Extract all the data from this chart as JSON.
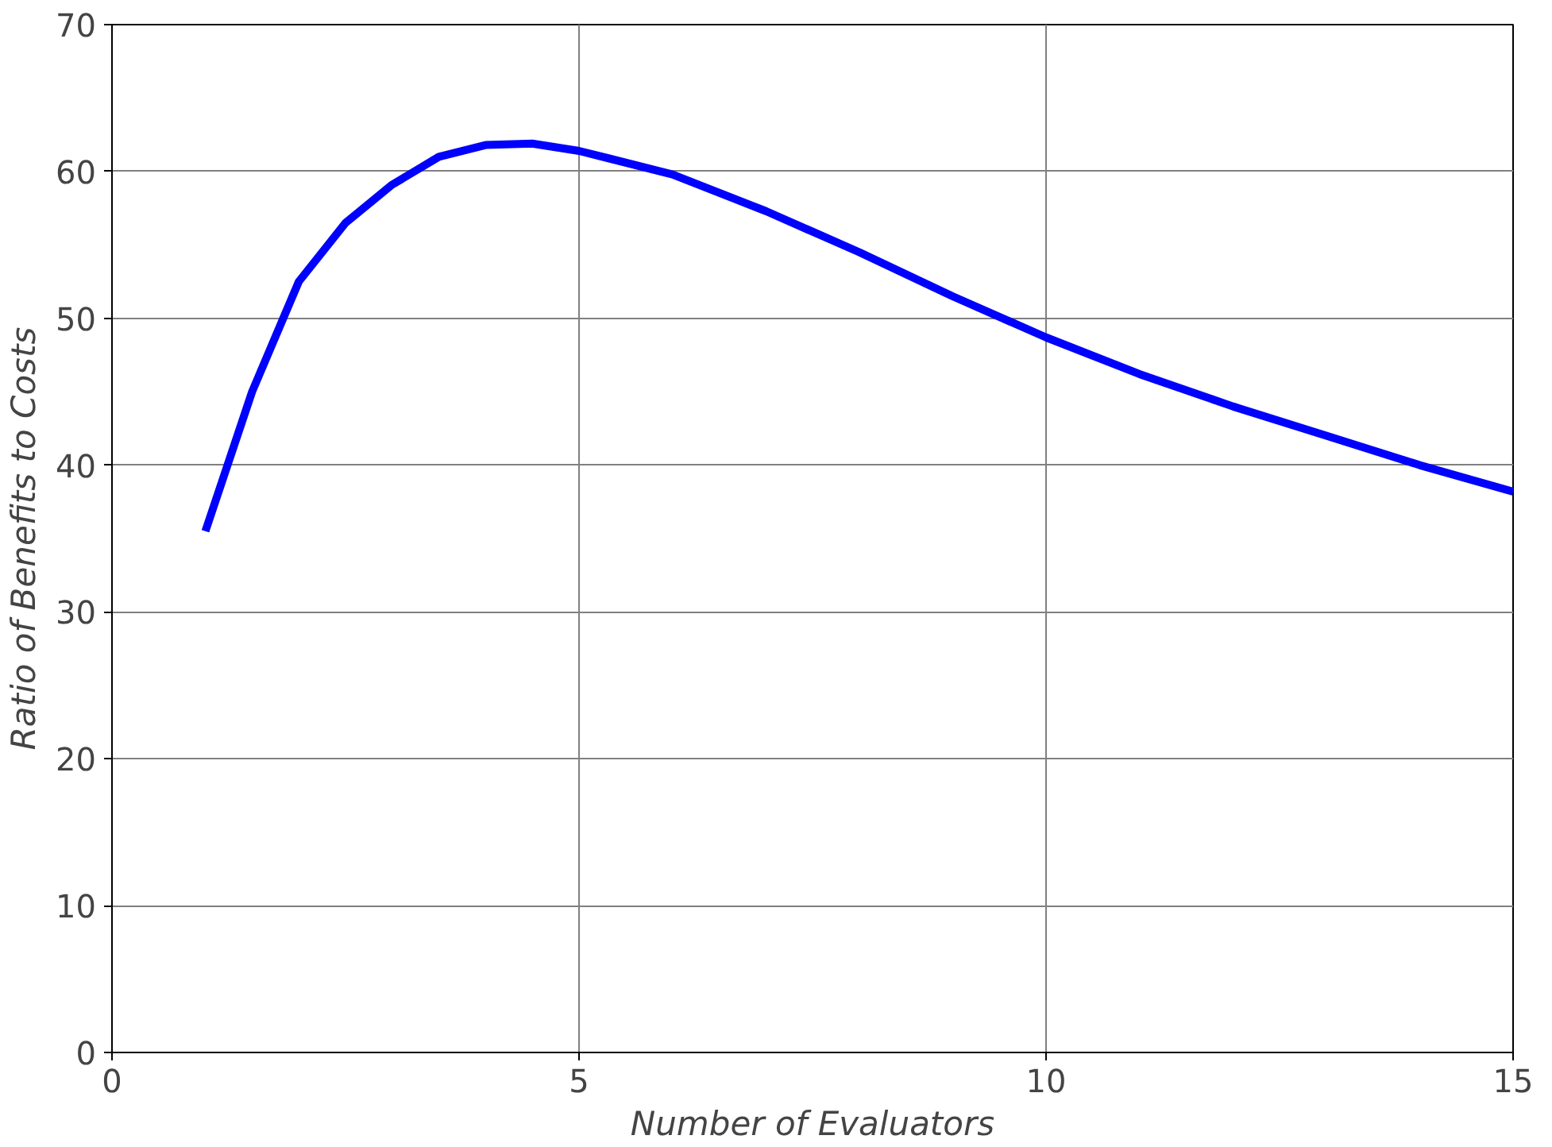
{
  "chart_data": {
    "type": "line",
    "xlabel": "Number of Evaluators",
    "ylabel": "Ratio of Benefits to Costs",
    "x": [
      1,
      1.5,
      2,
      2.5,
      3,
      3.5,
      4,
      4.5,
      5,
      6,
      7,
      8,
      9,
      10,
      11,
      12,
      13,
      14,
      15
    ],
    "series": [
      {
        "color": "#0000ff",
        "values": [
          35.5,
          45,
          52.5,
          56.5,
          59.1,
          61,
          61.8,
          61.9,
          61.4,
          59.8,
          57.3,
          54.5,
          51.5,
          48.7,
          46.2,
          44,
          42,
          40,
          38.2
        ]
      }
    ],
    "xlim": [
      0,
      15
    ],
    "xticks": [
      0,
      5,
      10,
      15
    ],
    "ylim": [
      0,
      70
    ],
    "yticks": [
      0,
      10,
      20,
      30,
      40,
      50,
      60,
      70
    ],
    "grid": true,
    "marker": "none",
    "line_style": "solid"
  }
}
